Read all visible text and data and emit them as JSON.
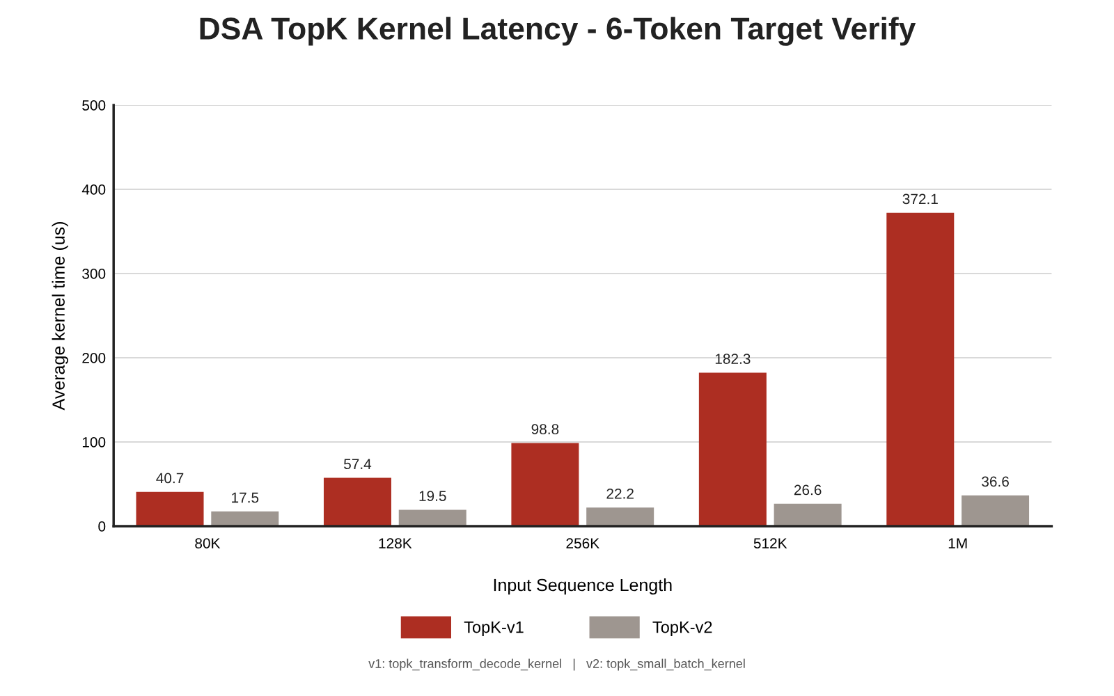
{
  "chart_data": {
    "type": "bar",
    "title": "DSA TopK Kernel Latency - 6-Token Target Verify",
    "xlabel": "Input Sequence Length",
    "ylabel": "Average kernel time (us)",
    "categories": [
      "80K",
      "128K",
      "256K",
      "512K",
      "1M"
    ],
    "series": [
      {
        "name": "TopK-v1",
        "color": "#ad2e22",
        "values": [
          40.7,
          57.4,
          98.8,
          182.3,
          372.1
        ]
      },
      {
        "name": "TopK-v2",
        "color": "#9e9690",
        "values": [
          17.5,
          19.5,
          22.2,
          26.6,
          36.6
        ]
      }
    ],
    "ylim": [
      0,
      500
    ],
    "yticks": [
      0,
      100,
      200,
      300,
      400,
      500
    ],
    "grid": "y",
    "legend": "bottom",
    "data_labels": true,
    "annotations": [
      "v1: topk_transform_decode_kernel   |   v2: topk_small_batch_kernel"
    ]
  }
}
